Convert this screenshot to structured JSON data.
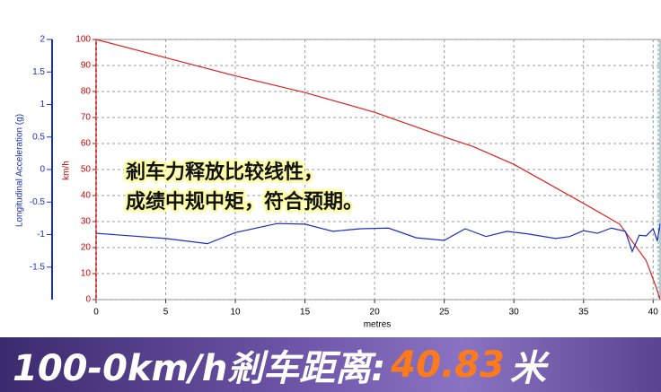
{
  "chart_data": {
    "type": "line",
    "xlabel": "metres",
    "ylabel": "km/h",
    "y2label": "Longitudinal Acceleration (g)",
    "annotation": [
      "剎车力释放比较线性，",
      "成绩中规中矩，符合预期。"
    ],
    "xlim": [
      0,
      40.5
    ],
    "xticks": [
      0,
      5,
      10,
      15,
      20,
      25,
      30,
      35,
      40
    ],
    "ylim": [
      0,
      100
    ],
    "yticks": [
      0,
      10,
      20,
      30,
      40,
      50,
      60,
      70,
      80,
      90,
      100
    ],
    "y2lim": [
      -2,
      2
    ],
    "y2ticks": [
      -1.5,
      -1,
      -0.5,
      0,
      0.5,
      1,
      1.5,
      2
    ],
    "grid": true,
    "series": [
      {
        "name": "km/h",
        "color": "#e02020",
        "x": [
          0,
          5,
          10,
          15,
          20,
          25.3,
          27,
          30,
          33,
          35,
          37.6,
          39.5,
          40.2,
          40.5
        ],
        "values": [
          100,
          93,
          86,
          79.6,
          72,
          62,
          59,
          52,
          43,
          37,
          29,
          15,
          5,
          0
        ]
      },
      {
        "name": "Longitudinal Acceleration (g)",
        "color": "#1a2fc0",
        "axis": "y2",
        "x": [
          0,
          5,
          8,
          10,
          13,
          15,
          17,
          19,
          21,
          23,
          25,
          26.5,
          28,
          29.5,
          31,
          33,
          34,
          35,
          36,
          37,
          38,
          38.5,
          39,
          39.5,
          40,
          40.3,
          40.5
        ],
        "values": [
          -0.98,
          -1.06,
          -1.14,
          -0.97,
          -0.83,
          -0.84,
          -0.95,
          -0.91,
          -0.9,
          -1.05,
          -1.09,
          -0.91,
          -1.03,
          -0.95,
          -0.99,
          -1.06,
          -1.03,
          -0.94,
          -0.98,
          -0.9,
          -0.95,
          -1.26,
          -1.01,
          -1.02,
          -0.91,
          -1.1,
          -0.83
        ]
      }
    ]
  },
  "banner": {
    "label": "100-0km/h剎车距离:",
    "value": "40.83",
    "unit": "米"
  }
}
